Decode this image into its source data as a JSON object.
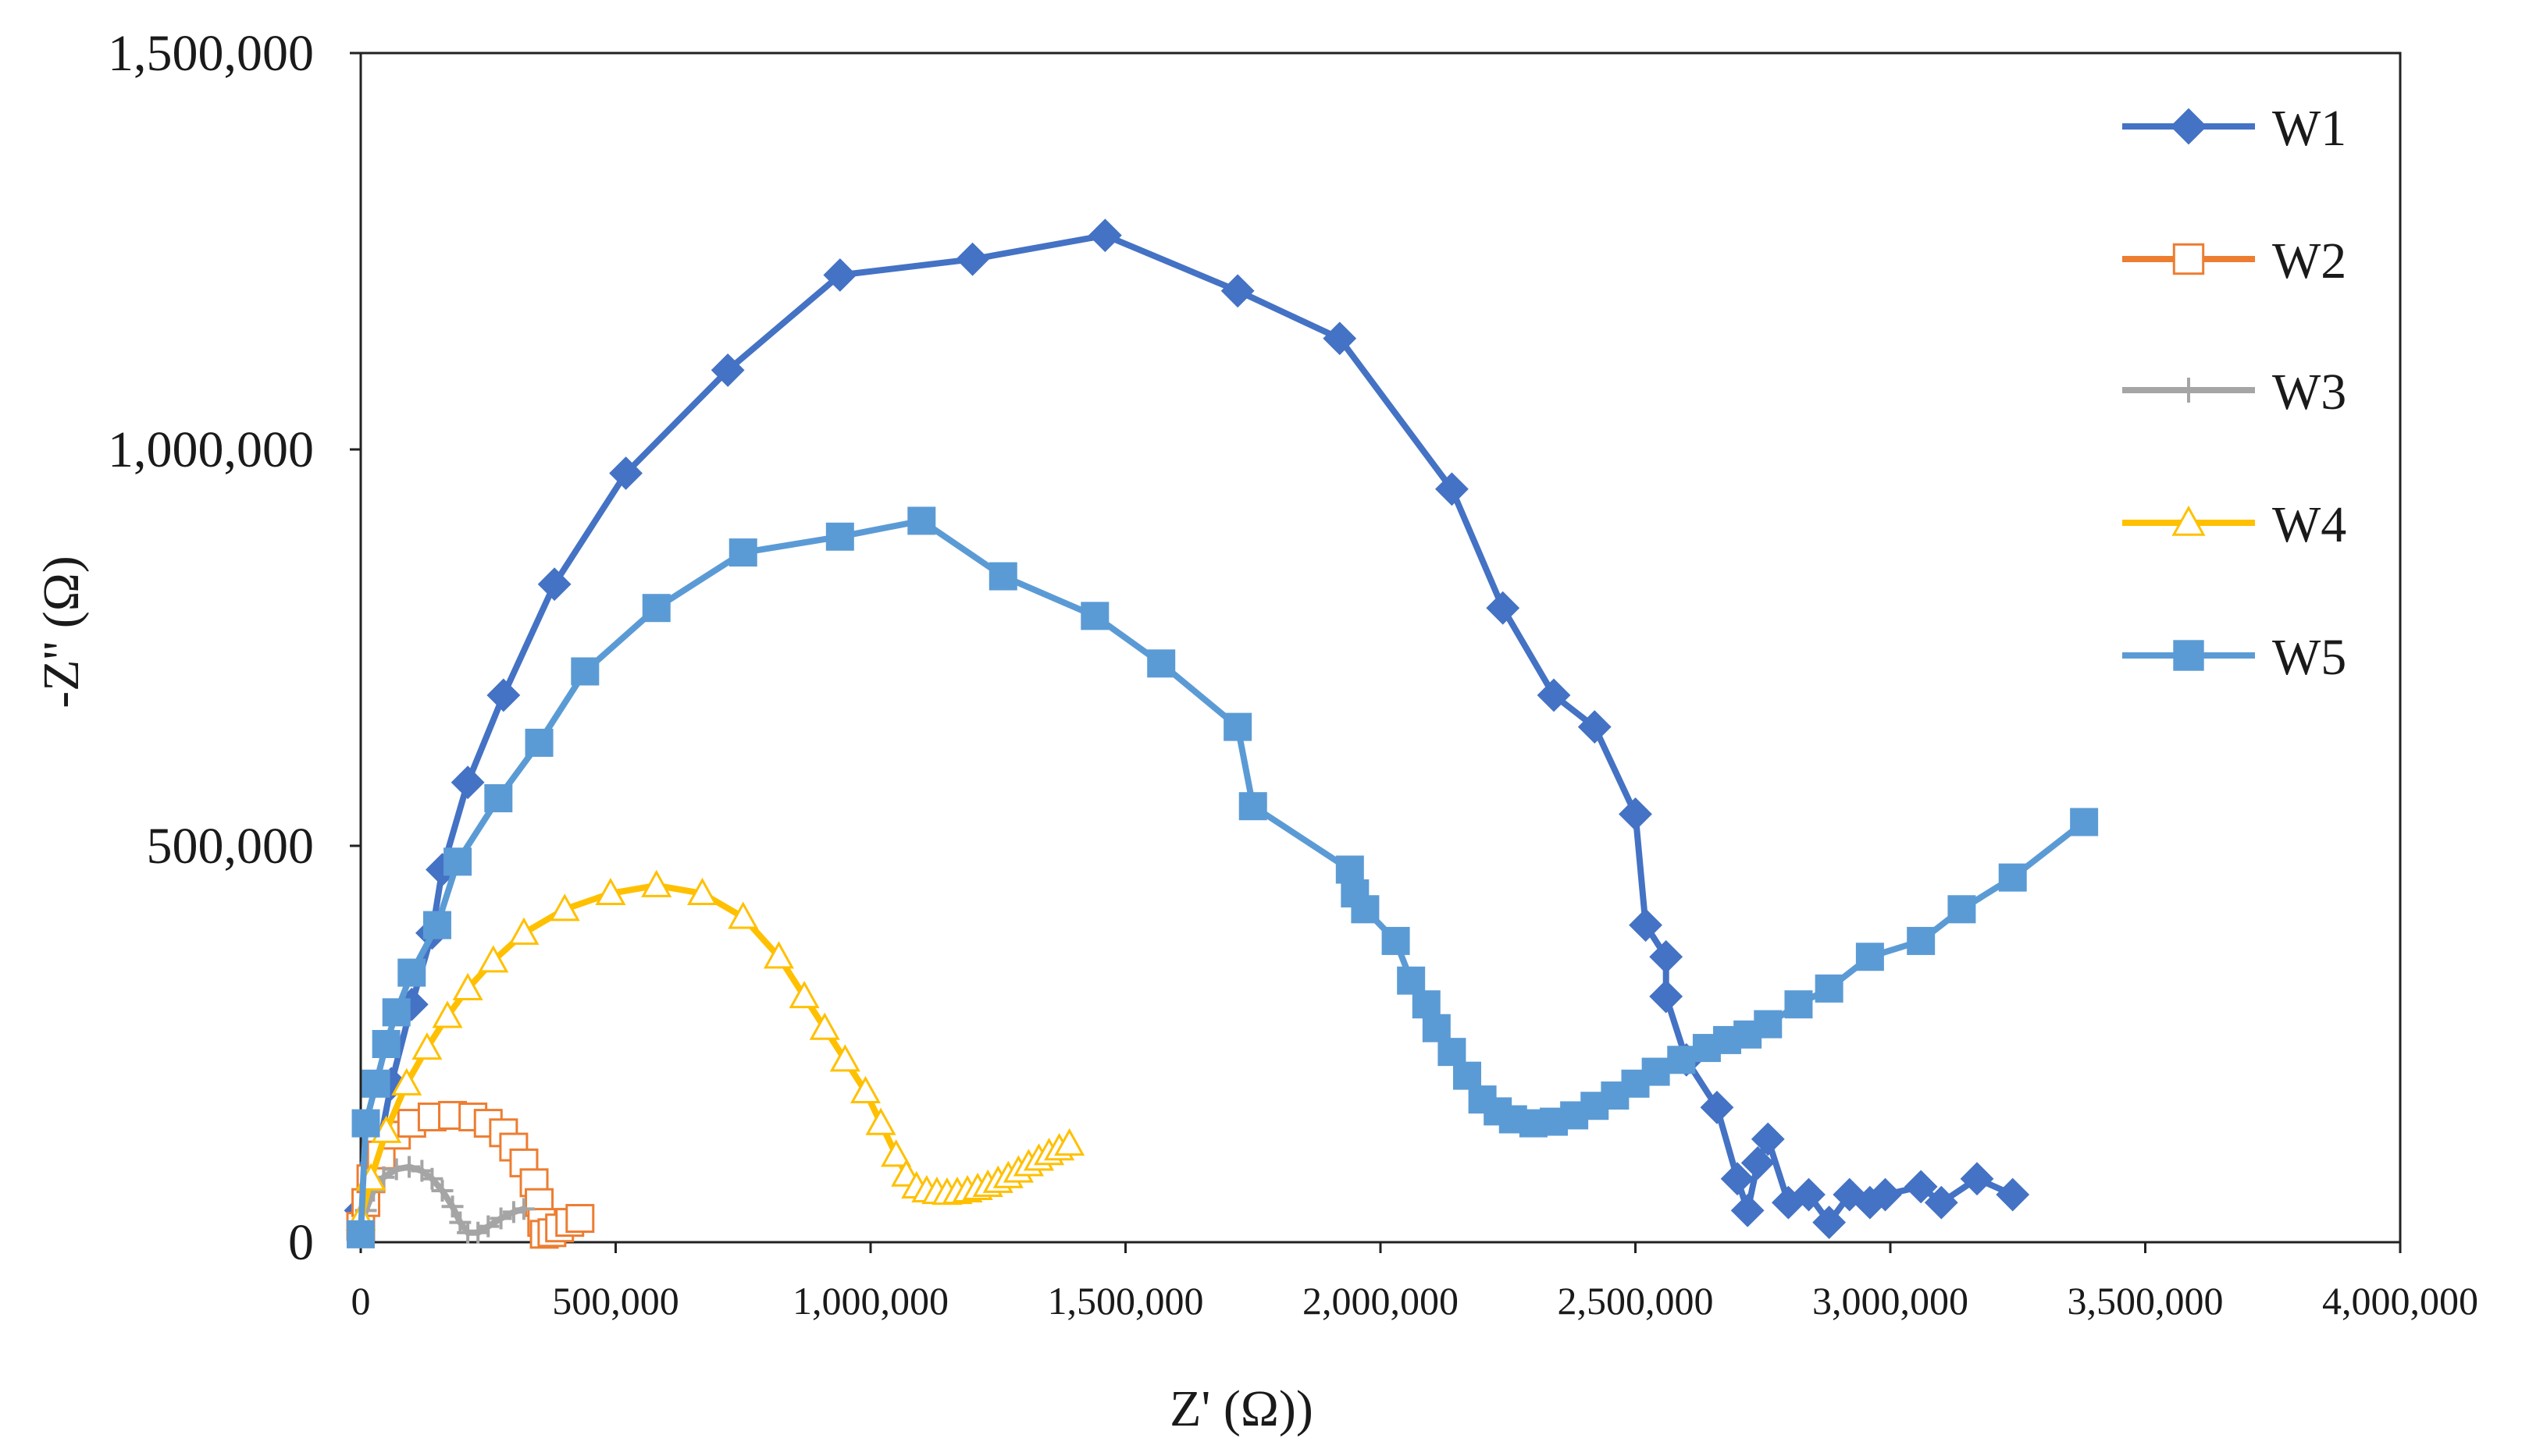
{
  "chart_data": {
    "type": "scatter",
    "title": "",
    "xlabel": "Z' (Ω))",
    "ylabel": "-Z'' (Ω)",
    "xlim": [
      0,
      4000000
    ],
    "ylim": [
      0,
      1500000
    ],
    "x_ticks": [
      0,
      500000,
      1000000,
      1500000,
      2000000,
      2500000,
      3000000,
      3500000,
      4000000
    ],
    "x_tick_labels": [
      "0",
      "500,000",
      "1,000,000",
      "1,500,000",
      "2,000,000",
      "2,500,000",
      "3,000,000",
      "3,500,000",
      "4,000,000"
    ],
    "y_ticks": [
      0,
      500000,
      1000000,
      1500000
    ],
    "y_tick_labels": [
      "0",
      "500,000",
      "1,000,000",
      "1,500,000"
    ],
    "grid": false,
    "legend_position": "top-right",
    "series": [
      {
        "name": "W1",
        "color": "#4472C4",
        "marker": "diamond",
        "filled": true,
        "points": [
          [
            0,
            40000
          ],
          [
            30000,
            100000
          ],
          [
            60000,
            200000
          ],
          [
            100000,
            300000
          ],
          [
            140000,
            390000
          ],
          [
            160000,
            470000
          ],
          [
            210000,
            580000
          ],
          [
            280000,
            690000
          ],
          [
            380000,
            830000
          ],
          [
            520000,
            970000
          ],
          [
            720000,
            1100000
          ],
          [
            940000,
            1220000
          ],
          [
            1200000,
            1240000
          ],
          [
            1460000,
            1270000
          ],
          [
            1720000,
            1200000
          ],
          [
            1920000,
            1140000
          ],
          [
            2140000,
            950000
          ],
          [
            2240000,
            800000
          ],
          [
            2340000,
            690000
          ],
          [
            2420000,
            650000
          ],
          [
            2500000,
            540000
          ],
          [
            2520000,
            400000
          ],
          [
            2560000,
            360000
          ],
          [
            2560000,
            310000
          ],
          [
            2600000,
            230000
          ],
          [
            2660000,
            170000
          ],
          [
            2700000,
            80000
          ],
          [
            2720000,
            40000
          ],
          [
            2740000,
            100000
          ],
          [
            2760000,
            130000
          ],
          [
            2800000,
            50000
          ],
          [
            2840000,
            60000
          ],
          [
            2880000,
            25000
          ],
          [
            2920000,
            60000
          ],
          [
            2960000,
            50000
          ],
          [
            2990000,
            60000
          ],
          [
            3060000,
            70000
          ],
          [
            3100000,
            50000
          ],
          [
            3170000,
            80000
          ],
          [
            3240000,
            60000
          ]
        ]
      },
      {
        "name": "W2",
        "color": "#ED7D31",
        "marker": "square",
        "filled": false,
        "points": [
          [
            0,
            20000
          ],
          [
            10000,
            50000
          ],
          [
            20000,
            80000
          ],
          [
            40000,
            110000
          ],
          [
            70000,
            135000
          ],
          [
            100000,
            150000
          ],
          [
            140000,
            158000
          ],
          [
            180000,
            160000
          ],
          [
            220000,
            158000
          ],
          [
            250000,
            150000
          ],
          [
            280000,
            138000
          ],
          [
            300000,
            120000
          ],
          [
            320000,
            100000
          ],
          [
            340000,
            75000
          ],
          [
            350000,
            50000
          ],
          [
            355000,
            25000
          ],
          [
            360000,
            10000
          ],
          [
            375000,
            12000
          ],
          [
            390000,
            18000
          ],
          [
            410000,
            25000
          ],
          [
            430000,
            30000
          ]
        ]
      },
      {
        "name": "W3",
        "color": "#A5A5A5",
        "marker": "cross",
        "filled": false,
        "points": [
          [
            0,
            15000
          ],
          [
            10000,
            40000
          ],
          [
            25000,
            65000
          ],
          [
            45000,
            82000
          ],
          [
            70000,
            92000
          ],
          [
            95000,
            95000
          ],
          [
            120000,
            90000
          ],
          [
            140000,
            80000
          ],
          [
            160000,
            65000
          ],
          [
            180000,
            45000
          ],
          [
            195000,
            25000
          ],
          [
            210000,
            12000
          ],
          [
            230000,
            12000
          ],
          [
            250000,
            20000
          ],
          [
            275000,
            30000
          ],
          [
            300000,
            38000
          ],
          [
            320000,
            42000
          ]
        ]
      },
      {
        "name": "W4",
        "color": "#FFC000",
        "marker": "triangle",
        "filled": false,
        "points": [
          [
            0,
            30000
          ],
          [
            20000,
            80000
          ],
          [
            50000,
            140000
          ],
          [
            90000,
            200000
          ],
          [
            130000,
            245000
          ],
          [
            170000,
            285000
          ],
          [
            210000,
            320000
          ],
          [
            260000,
            355000
          ],
          [
            320000,
            390000
          ],
          [
            400000,
            420000
          ],
          [
            490000,
            440000
          ],
          [
            580000,
            450000
          ],
          [
            670000,
            440000
          ],
          [
            750000,
            410000
          ],
          [
            820000,
            360000
          ],
          [
            870000,
            310000
          ],
          [
            910000,
            270000
          ],
          [
            950000,
            230000
          ],
          [
            990000,
            190000
          ],
          [
            1020000,
            150000
          ],
          [
            1050000,
            110000
          ],
          [
            1070000,
            85000
          ],
          [
            1090000,
            70000
          ],
          [
            1110000,
            65000
          ],
          [
            1130000,
            63000
          ],
          [
            1150000,
            62000
          ],
          [
            1170000,
            63000
          ],
          [
            1190000,
            65000
          ],
          [
            1210000,
            68000
          ],
          [
            1230000,
            72000
          ],
          [
            1250000,
            77000
          ],
          [
            1270000,
            83000
          ],
          [
            1290000,
            90000
          ],
          [
            1310000,
            98000
          ],
          [
            1330000,
            105000
          ],
          [
            1350000,
            112000
          ],
          [
            1370000,
            118000
          ],
          [
            1390000,
            124000
          ]
        ]
      },
      {
        "name": "W5",
        "color": "#5B9BD5",
        "marker": "square",
        "filled": true,
        "points": [
          [
            0,
            10000
          ],
          [
            10000,
            150000
          ],
          [
            30000,
            200000
          ],
          [
            50000,
            250000
          ],
          [
            70000,
            290000
          ],
          [
            100000,
            340000
          ],
          [
            150000,
            400000
          ],
          [
            190000,
            480000
          ],
          [
            270000,
            560000
          ],
          [
            350000,
            630000
          ],
          [
            440000,
            720000
          ],
          [
            580000,
            800000
          ],
          [
            750000,
            870000
          ],
          [
            940000,
            890000
          ],
          [
            1100000,
            910000
          ],
          [
            1260000,
            840000
          ],
          [
            1440000,
            790000
          ],
          [
            1570000,
            730000
          ],
          [
            1720000,
            650000
          ],
          [
            1750000,
            550000
          ],
          [
            1940000,
            470000
          ],
          [
            1950000,
            440000
          ],
          [
            1970000,
            420000
          ],
          [
            2030000,
            380000
          ],
          [
            2060000,
            330000
          ],
          [
            2090000,
            300000
          ],
          [
            2110000,
            270000
          ],
          [
            2140000,
            240000
          ],
          [
            2170000,
            210000
          ],
          [
            2200000,
            180000
          ],
          [
            2230000,
            165000
          ],
          [
            2260000,
            155000
          ],
          [
            2300000,
            150000
          ],
          [
            2340000,
            152000
          ],
          [
            2380000,
            160000
          ],
          [
            2420000,
            172000
          ],
          [
            2460000,
            185000
          ],
          [
            2500000,
            200000
          ],
          [
            2540000,
            215000
          ],
          [
            2590000,
            230000
          ],
          [
            2640000,
            245000
          ],
          [
            2680000,
            255000
          ],
          [
            2720000,
            262000
          ],
          [
            2760000,
            275000
          ],
          [
            2820000,
            300000
          ],
          [
            2880000,
            320000
          ],
          [
            2960000,
            360000
          ],
          [
            3060000,
            380000
          ],
          [
            3140000,
            420000
          ],
          [
            3240000,
            460000
          ],
          [
            3380000,
            530000
          ]
        ]
      }
    ]
  }
}
